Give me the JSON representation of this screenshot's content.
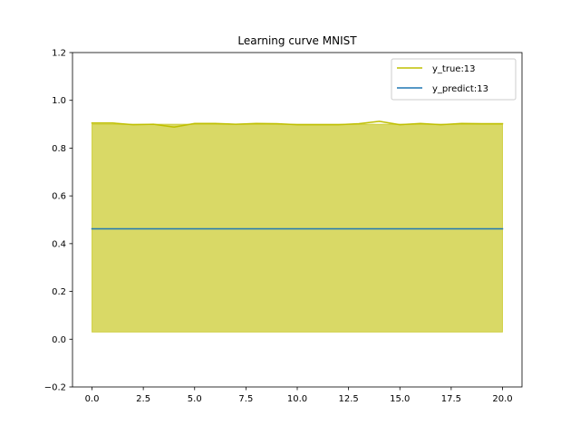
{
  "chart_data": {
    "type": "line",
    "title": "Learning curve MNIST",
    "xlabel": "",
    "ylabel": "",
    "xlim": [
      -0.95,
      20.95
    ],
    "ylim": [
      -0.2,
      1.2
    ],
    "xticks": [
      0.0,
      2.5,
      5.0,
      7.5,
      10.0,
      12.5,
      15.0,
      17.5,
      20.0
    ],
    "xtick_labels": [
      "0.0",
      "2.5",
      "5.0",
      "7.5",
      "10.0",
      "12.5",
      "15.0",
      "17.5",
      "20.0"
    ],
    "yticks": [
      -0.2,
      0.0,
      0.2,
      0.4,
      0.6,
      0.8,
      1.0,
      1.2
    ],
    "ytick_labels": [
      "−0.2",
      "0.0",
      "0.2",
      "0.4",
      "0.6",
      "0.8",
      "1.0",
      "1.2"
    ],
    "grid": false,
    "legend_position": "top-right",
    "x": [
      0,
      1,
      2,
      3,
      4,
      5,
      6,
      7,
      8,
      9,
      10,
      11,
      12,
      13,
      14,
      15,
      16,
      17,
      18,
      19,
      20
    ],
    "series": [
      {
        "name": "y_true:13",
        "color": "#bfbf00",
        "values": [
          0.905,
          0.905,
          0.898,
          0.9,
          0.888,
          0.903,
          0.903,
          0.9,
          0.903,
          0.902,
          0.898,
          0.898,
          0.898,
          0.902,
          0.912,
          0.898,
          0.903,
          0.898,
          0.903,
          0.902,
          0.902
        ]
      },
      {
        "name": "y_predict:13",
        "color": "#1f77b4",
        "values": [
          0.462,
          0.462,
          0.462,
          0.462,
          0.462,
          0.462,
          0.462,
          0.462,
          0.462,
          0.462,
          0.462,
          0.462,
          0.462,
          0.462,
          0.462,
          0.462,
          0.462,
          0.462,
          0.462,
          0.462,
          0.462
        ]
      }
    ],
    "fill_band": {
      "color": "#bfbf00",
      "opacity": 0.6,
      "lower": 0.03,
      "upper": 0.9
    }
  }
}
